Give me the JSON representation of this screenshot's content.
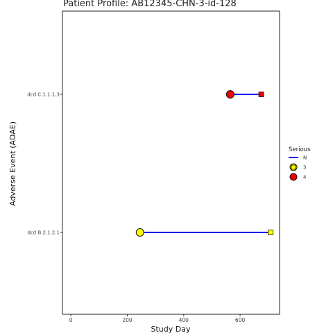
{
  "chart_data": {
    "type": "line",
    "title": "Patient Profile:  AB12345-CHN-3-id-128",
    "xlabel": "Study Day",
    "ylabel": "Adverse Event (ADAE)",
    "xlim": [
      -30,
      740
    ],
    "x_ticks": [
      0,
      200,
      400,
      600
    ],
    "categories": [
      "dcd C.1.1.1.3",
      "dcd B.2.1.2.1"
    ],
    "grid": false,
    "legend_position": "right",
    "legend": {
      "title": "Serious",
      "line_entry": {
        "label": "N",
        "color": "#0000ee"
      },
      "marker_entries": [
        {
          "label": "3",
          "color": "#ffff00"
        },
        {
          "label": "4",
          "color": "#ee0000"
        }
      ]
    },
    "series": [
      {
        "category": "dcd C.1.1.1.3",
        "start": 565,
        "end": 675,
        "grade": "4",
        "serious": "N",
        "color": "#ee0000",
        "line_color": "#0000ee"
      },
      {
        "category": "dcd B.2.1.2.1",
        "start": 245,
        "end": 708,
        "grade": "3",
        "serious": "N",
        "color": "#ffff00",
        "line_color": "#0000ee"
      }
    ]
  }
}
